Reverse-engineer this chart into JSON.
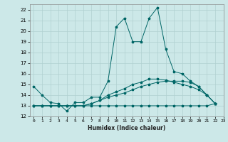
{
  "title": "",
  "xlabel": "Humidex (Indice chaleur)",
  "bg_color": "#cce8e8",
  "line_color": "#006666",
  "grid_color": "#b0d0d0",
  "xlim": [
    -0.5,
    23
  ],
  "ylim": [
    12,
    22.5
  ],
  "yticks": [
    12,
    13,
    14,
    15,
    16,
    17,
    18,
    19,
    20,
    21,
    22
  ],
  "xticks": [
    0,
    1,
    2,
    3,
    4,
    5,
    6,
    7,
    8,
    9,
    10,
    11,
    12,
    13,
    14,
    15,
    16,
    17,
    18,
    19,
    20,
    21,
    22,
    23
  ],
  "series": [
    [
      14.8,
      14.0,
      13.3,
      13.2,
      12.5,
      13.3,
      13.3,
      13.8,
      13.8,
      15.3,
      20.4,
      21.2,
      19.0,
      19.0,
      21.2,
      22.2,
      18.3,
      16.2,
      16.0,
      15.3,
      14.8,
      14.0,
      13.2
    ],
    [
      13.0,
      13.0,
      13.0,
      13.0,
      13.0,
      13.0,
      13.0,
      13.0,
      13.0,
      13.0,
      13.0,
      13.0,
      13.0,
      13.0,
      13.0,
      13.0,
      13.0,
      13.0,
      13.0,
      13.0,
      13.0,
      13.0,
      13.2
    ],
    [
      13.0,
      13.0,
      13.0,
      13.0,
      13.0,
      13.0,
      13.0,
      13.2,
      13.5,
      13.8,
      14.0,
      14.2,
      14.5,
      14.8,
      15.0,
      15.2,
      15.3,
      15.3,
      15.3,
      15.2,
      14.8,
      14.0,
      13.2
    ],
    [
      13.0,
      13.0,
      13.0,
      13.0,
      13.0,
      13.0,
      13.0,
      13.2,
      13.5,
      14.0,
      14.3,
      14.6,
      15.0,
      15.2,
      15.5,
      15.5,
      15.4,
      15.2,
      15.0,
      14.8,
      14.5,
      14.0,
      13.2
    ]
  ],
  "series_x": [
    [
      0,
      1,
      2,
      3,
      4,
      5,
      6,
      7,
      8,
      9,
      10,
      11,
      12,
      13,
      14,
      15,
      16,
      17,
      18,
      19,
      20,
      21,
      22
    ],
    [
      0,
      1,
      2,
      3,
      4,
      5,
      6,
      7,
      8,
      9,
      10,
      11,
      12,
      13,
      14,
      15,
      16,
      17,
      18,
      19,
      20,
      21,
      22
    ],
    [
      0,
      1,
      2,
      3,
      4,
      5,
      6,
      7,
      8,
      9,
      10,
      11,
      12,
      13,
      14,
      15,
      16,
      17,
      18,
      19,
      20,
      21,
      22
    ],
    [
      0,
      1,
      2,
      3,
      4,
      5,
      6,
      7,
      8,
      9,
      10,
      11,
      12,
      13,
      14,
      15,
      16,
      17,
      18,
      19,
      20,
      21,
      22
    ]
  ]
}
